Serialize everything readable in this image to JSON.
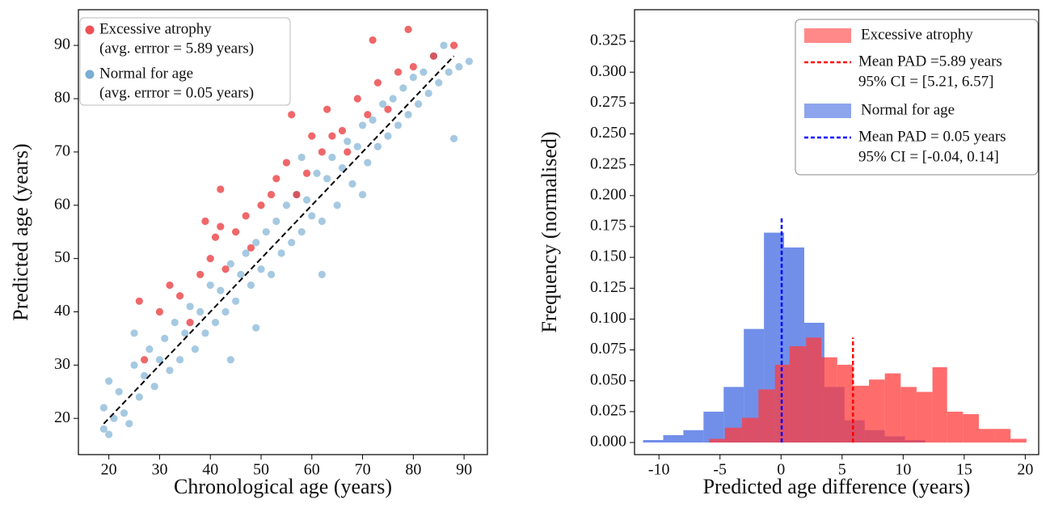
{
  "chart_data": [
    {
      "type": "scatter",
      "xlabel": "Chronological age (years)",
      "ylabel": "Predicted age (years)",
      "xlim": [
        14,
        94.6
      ],
      "ylim": [
        13.2,
        96.7
      ],
      "xticks": [
        20,
        30,
        40,
        50,
        60,
        70,
        80,
        90
      ],
      "yticks": [
        20,
        30,
        40,
        50,
        60,
        70,
        80,
        90
      ],
      "reference_line": {
        "x": [
          19,
          88
        ],
        "y": [
          19,
          88
        ],
        "color": "#000000"
      },
      "series": [
        {
          "name": "Normal for age",
          "legend_note": "(avg. errror = 0.05 years)",
          "color": "#1f77b4",
          "x": [
            19,
            19,
            20,
            20,
            21,
            22,
            23,
            24,
            25,
            26,
            27,
            28,
            29,
            30,
            31,
            32,
            33,
            34,
            35,
            36,
            37,
            38,
            39,
            40,
            41,
            42,
            43,
            44,
            45,
            46,
            47,
            48,
            49,
            50,
            51,
            52,
            53,
            54,
            55,
            56,
            57,
            58,
            59,
            60,
            61,
            62,
            63,
            64,
            65,
            66,
            67,
            68,
            69,
            70,
            71,
            72,
            73,
            74,
            75,
            76,
            77,
            78,
            79,
            80,
            81,
            82,
            83,
            84,
            85,
            86,
            87,
            88,
            89,
            91,
            44,
            62,
            49,
            25,
            70,
            58
          ],
          "y": [
            18,
            22,
            27,
            17,
            20,
            25,
            21,
            19,
            30,
            24,
            28,
            33,
            26,
            31,
            35,
            29,
            38,
            31,
            36,
            41,
            33,
            40,
            36,
            45,
            38,
            44,
            40,
            49,
            42,
            47,
            51,
            45,
            53,
            48,
            55,
            47,
            57,
            51,
            60,
            53,
            62,
            55,
            61,
            58,
            66,
            57,
            65,
            69,
            60,
            67,
            72,
            64,
            71,
            75,
            68,
            76,
            71,
            79,
            73,
            80,
            75,
            82,
            77,
            84,
            79,
            85,
            81,
            88,
            83,
            90,
            85,
            72.5,
            86,
            87,
            31,
            47,
            37,
            36,
            62,
            69
          ]
        },
        {
          "name": "Excessive atrophy",
          "legend_note": "(avg. errror = 5.89 years)",
          "color": "#e8262a",
          "x": [
            26,
            27,
            30,
            32,
            34,
            36,
            38,
            40,
            41,
            42,
            43,
            45,
            47,
            48,
            50,
            52,
            53,
            55,
            56,
            57,
            59,
            60,
            62,
            63,
            64,
            66,
            67,
            69,
            71,
            72,
            73,
            75,
            77,
            79,
            80,
            84,
            88,
            39,
            42
          ],
          "y": [
            42,
            31,
            40,
            45,
            43,
            38,
            47,
            50,
            54,
            63,
            48,
            55,
            58,
            52,
            60,
            62,
            65,
            68,
            77,
            62,
            66,
            73,
            70,
            78,
            73,
            74,
            70,
            80,
            77,
            91,
            83,
            78,
            85,
            93,
            86,
            88,
            90,
            57,
            56
          ]
        }
      ]
    },
    {
      "type": "histogram",
      "xlabel": "Predicted age difference (years)",
      "ylabel": "Frequency (normalised)",
      "xlim": [
        -12,
        21.1
      ],
      "ylim": [
        -0.0098,
        0.3506
      ],
      "xticks": [
        -10,
        -5,
        0,
        5,
        10,
        15,
        20
      ],
      "yticks": [
        {
          "value": 0,
          "label": "0.000"
        },
        0.025,
        {
          "value": 0.05,
          "label": "0.050"
        },
        0.075,
        {
          "value": 0.1,
          "label": "0.100"
        },
        0.125,
        {
          "value": 0.15,
          "label": "0.150"
        },
        0.175,
        {
          "value": 0.2,
          "label": "0.200"
        },
        0.225,
        {
          "value": 0.25,
          "label": "0.250"
        },
        0.275,
        {
          "value": 0.3,
          "label": "0.300"
        },
        0.325
      ],
      "series": [
        {
          "name": "Normal for age",
          "color": "#4169e1",
          "bins": [
            -11.3,
            -9.65,
            -8.0,
            -6.35,
            -4.7,
            -3.05,
            -1.4,
            0.25,
            1.9,
            3.55,
            5.2,
            6.85,
            8.5,
            10.15,
            11.8
          ],
          "values": [
            0.002,
            0.006,
            0.01,
            0.025,
            0.045,
            0.092,
            0.17,
            0.158,
            0.097,
            0.045,
            0.018,
            0.01,
            0.005,
            0.002
          ]
        },
        {
          "name": "Excessive atrophy",
          "color": "#ff3b3b",
          "bins": [
            -5.9,
            -4.6,
            -3.2,
            -1.85,
            -0.5,
            0.7,
            2.05,
            3.3,
            4.6,
            5.9,
            7.2,
            8.5,
            9.8,
            11.1,
            12.4,
            13.6,
            14.9,
            16.2,
            17.5,
            18.8,
            20.1
          ],
          "values": [
            0.003,
            0.012,
            0.02,
            0.043,
            0.063,
            0.078,
            0.085,
            0.069,
            0.063,
            0.046,
            0.051,
            0.056,
            0.045,
            0.041,
            0.061,
            0.025,
            0.023,
            0.011,
            0.011,
            0.003
          ]
        }
      ],
      "lines": [
        {
          "name": "Mean PAD =5.89 years",
          "ci": "95% CI = [5.21, 6.57]",
          "color": "#ff0000",
          "x": 5.89,
          "ymax": 0.085
        },
        {
          "name": "Mean PAD = 0.05 years",
          "ci": "95% CI = [-0.04, 0.14]",
          "color": "#0000ff",
          "x": 0.05,
          "ymax": 0.183
        }
      ]
    }
  ]
}
